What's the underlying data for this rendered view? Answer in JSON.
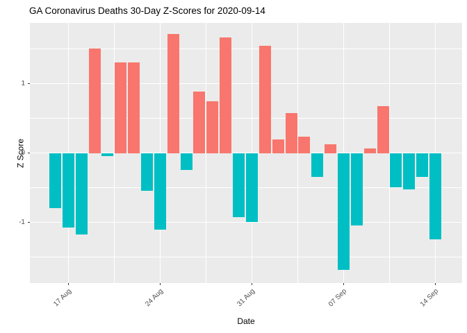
{
  "chart_data": {
    "type": "bar",
    "title": "GA Coronavirus Deaths 30-Day Z-Scores for 2020-09-14",
    "xlabel": "Date",
    "ylabel": "Z Score",
    "x": [
      "2020-08-16",
      "2020-08-17",
      "2020-08-18",
      "2020-08-19",
      "2020-08-20",
      "2020-08-21",
      "2020-08-22",
      "2020-08-23",
      "2020-08-24",
      "2020-08-25",
      "2020-08-26",
      "2020-08-27",
      "2020-08-28",
      "2020-08-29",
      "2020-08-30",
      "2020-08-31",
      "2020-09-01",
      "2020-09-02",
      "2020-09-03",
      "2020-09-04",
      "2020-09-05",
      "2020-09-06",
      "2020-09-07",
      "2020-09-08",
      "2020-09-09",
      "2020-09-10",
      "2020-09-11",
      "2020-09-12",
      "2020-09-13",
      "2020-09-14"
    ],
    "values": [
      -0.79,
      -1.07,
      -1.17,
      1.51,
      -0.04,
      1.31,
      1.31,
      -0.54,
      -1.1,
      1.72,
      -0.24,
      0.89,
      0.75,
      1.67,
      -0.92,
      -0.99,
      1.55,
      0.2,
      0.58,
      0.24,
      -0.34,
      0.13,
      -1.68,
      -1.04,
      0.07,
      0.68,
      -0.49,
      -0.52,
      -0.34,
      -1.24
    ],
    "positive_color": "#F8766D",
    "negative_color": "#00BFC4",
    "panel_background": "#EBEBEB",
    "grid_color": "#FFFFFF",
    "ylim": [
      -1.873,
      1.877
    ],
    "y_major_ticks": [
      {
        "value": 1,
        "label": "1"
      },
      {
        "value": 0,
        "label": "0"
      },
      {
        "value": -1,
        "label": "-1"
      }
    ],
    "y_minor": [
      1.5,
      0.5,
      -0.5,
      -1.5
    ],
    "x_ticks": [
      {
        "index": 1,
        "label": "17 Aug"
      },
      {
        "index": 8,
        "label": "24 Aug"
      },
      {
        "index": 15,
        "label": "31 Aug"
      },
      {
        "index": 22,
        "label": "07 Sep"
      },
      {
        "index": 29,
        "label": "14 Sep"
      }
    ],
    "x_minor_index": [
      4.5,
      11.5,
      18.5,
      25.5
    ],
    "legend": "none",
    "grid": true
  }
}
